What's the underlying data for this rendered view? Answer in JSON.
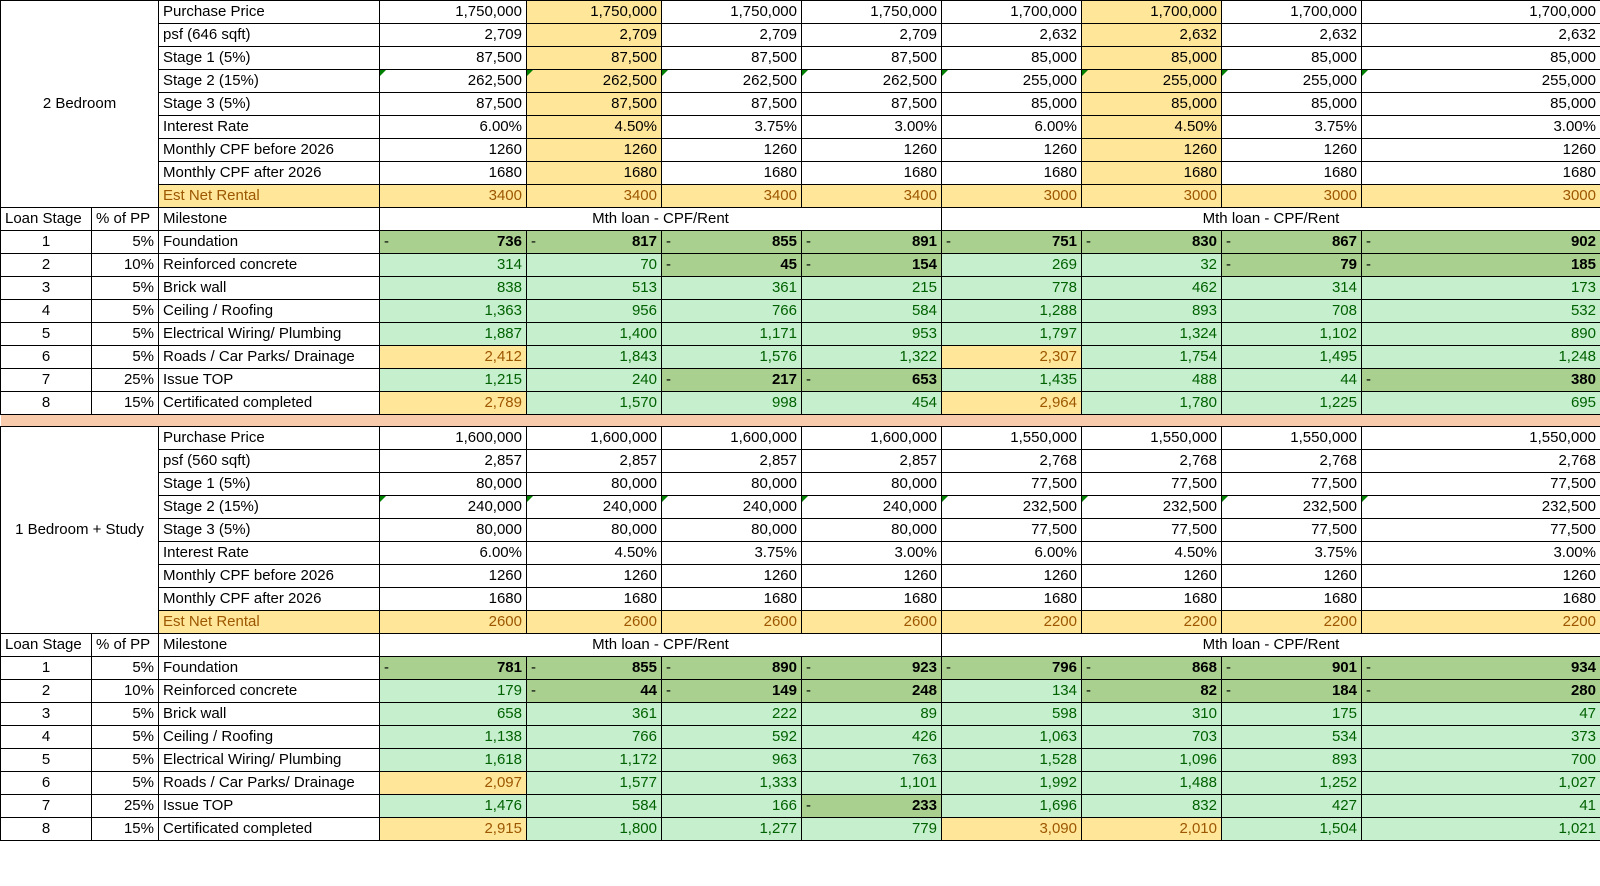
{
  "section_a": {
    "unit_label": "2 Bedroom",
    "info_rows": [
      {
        "label": "Purchase Price",
        "values": [
          "1,750,000",
          "1,750,000",
          "1,750,000",
          "1,750,000",
          "1,700,000",
          "1,700,000",
          "1,700,000",
          "1,700,000"
        ]
      },
      {
        "label": "psf (646 sqft)",
        "values": [
          "2,709",
          "2,709",
          "2,709",
          "2,709",
          "2,632",
          "2,632",
          "2,632",
          "2,632"
        ]
      },
      {
        "label": "Stage 1 (5%)",
        "values": [
          "87,500",
          "87,500",
          "87,500",
          "87,500",
          "85,000",
          "85,000",
          "85,000",
          "85,000"
        ]
      },
      {
        "label": "Stage 2 (15%)",
        "values": [
          "262,500",
          "262,500",
          "262,500",
          "262,500",
          "255,000",
          "255,000",
          "255,000",
          "255,000"
        ]
      },
      {
        "label": "Stage 3 (5%)",
        "values": [
          "87,500",
          "87,500",
          "87,500",
          "87,500",
          "85,000",
          "85,000",
          "85,000",
          "85,000"
        ]
      },
      {
        "label": "Interest Rate",
        "values": [
          "6.00%",
          "4.50%",
          "3.75%",
          "3.00%",
          "6.00%",
          "4.50%",
          "3.75%",
          "3.00%"
        ]
      },
      {
        "label": "Monthly CPF before 2026",
        "values": [
          "1260",
          "1260",
          "1260",
          "1260",
          "1260",
          "1260",
          "1260",
          "1260"
        ]
      },
      {
        "label": "Monthly CPF after 2026",
        "values": [
          "1680",
          "1680",
          "1680",
          "1680",
          "1680",
          "1680",
          "1680",
          "1680"
        ]
      },
      {
        "label": "Est Net Rental",
        "values": [
          "3400",
          "3400",
          "3400",
          "3400",
          "3000",
          "3000",
          "3000",
          "3000"
        ]
      }
    ],
    "header": {
      "col1": "Loan Stage",
      "col2": "% of PP",
      "col3": "Milestone",
      "group1": "Mth loan - CPF/Rent",
      "group2": "Mth loan - CPF/Rent"
    },
    "stages": [
      {
        "stage": "1",
        "pct": "5%",
        "milestone": "Foundation",
        "values": [
          "736",
          "817",
          "855",
          "891",
          "751",
          "830",
          "867",
          "902"
        ]
      },
      {
        "stage": "2",
        "pct": "10%",
        "milestone": "Reinforced concrete",
        "values": [
          "314",
          "70",
          "45",
          "154",
          "269",
          "32",
          "79",
          "185"
        ]
      },
      {
        "stage": "3",
        "pct": "5%",
        "milestone": "Brick wall",
        "values": [
          "838",
          "513",
          "361",
          "215",
          "778",
          "462",
          "314",
          "173"
        ]
      },
      {
        "stage": "4",
        "pct": "5%",
        "milestone": "Ceiling / Roofing",
        "values": [
          "1,363",
          "956",
          "766",
          "584",
          "1,288",
          "893",
          "708",
          "532"
        ]
      },
      {
        "stage": "5",
        "pct": "5%",
        "milestone": "Electrical Wiring/ Plumbing",
        "values": [
          "1,887",
          "1,400",
          "1,171",
          "953",
          "1,797",
          "1,324",
          "1,102",
          "890"
        ]
      },
      {
        "stage": "6",
        "pct": "5%",
        "milestone": "Roads / Car Parks/ Drainage",
        "values": [
          "2,412",
          "1,843",
          "1,576",
          "1,322",
          "2,307",
          "1,754",
          "1,495",
          "1,248"
        ]
      },
      {
        "stage": "7",
        "pct": "25%",
        "milestone": "Issue TOP",
        "values": [
          "1,215",
          "240",
          "217",
          "653",
          "1,435",
          "488",
          "44",
          "380"
        ]
      },
      {
        "stage": "8",
        "pct": "15%",
        "milestone": "Certificated completed",
        "values": [
          "2,789",
          "1,570",
          "998",
          "454",
          "2,964",
          "1,780",
          "1,225",
          "695"
        ]
      }
    ]
  },
  "section_b": {
    "unit_label": "1 Bedroom + Study",
    "info_rows": [
      {
        "label": "Purchase Price",
        "values": [
          "1,600,000",
          "1,600,000",
          "1,600,000",
          "1,600,000",
          "1,550,000",
          "1,550,000",
          "1,550,000",
          "1,550,000"
        ]
      },
      {
        "label": "psf (560 sqft)",
        "values": [
          "2,857",
          "2,857",
          "2,857",
          "2,857",
          "2,768",
          "2,768",
          "2,768",
          "2,768"
        ]
      },
      {
        "label": "Stage 1 (5%)",
        "values": [
          "80,000",
          "80,000",
          "80,000",
          "80,000",
          "77,500",
          "77,500",
          "77,500",
          "77,500"
        ]
      },
      {
        "label": "Stage 2 (15%)",
        "values": [
          "240,000",
          "240,000",
          "240,000",
          "240,000",
          "232,500",
          "232,500",
          "232,500",
          "232,500"
        ]
      },
      {
        "label": "Stage 3 (5%)",
        "values": [
          "80,000",
          "80,000",
          "80,000",
          "80,000",
          "77,500",
          "77,500",
          "77,500",
          "77,500"
        ]
      },
      {
        "label": "Interest Rate",
        "values": [
          "6.00%",
          "4.50%",
          "3.75%",
          "3.00%",
          "6.00%",
          "4.50%",
          "3.75%",
          "3.00%"
        ]
      },
      {
        "label": "Monthly CPF before 2026",
        "values": [
          "1260",
          "1260",
          "1260",
          "1260",
          "1260",
          "1260",
          "1260",
          "1260"
        ]
      },
      {
        "label": "Monthly CPF after 2026",
        "values": [
          "1680",
          "1680",
          "1680",
          "1680",
          "1680",
          "1680",
          "1680",
          "1680"
        ]
      },
      {
        "label": "Est Net Rental",
        "values": [
          "2600",
          "2600",
          "2600",
          "2600",
          "2200",
          "2200",
          "2200",
          "2200"
        ]
      }
    ],
    "header": {
      "col1": "Loan Stage",
      "col2": "% of PP",
      "col3": "Milestone",
      "group1": "Mth loan - CPF/Rent",
      "group2": "Mth loan - CPF/Rent"
    },
    "stages": [
      {
        "stage": "1",
        "pct": "5%",
        "milestone": "Foundation",
        "values": [
          "781",
          "855",
          "890",
          "923",
          "796",
          "868",
          "901",
          "934"
        ]
      },
      {
        "stage": "2",
        "pct": "10%",
        "milestone": "Reinforced concrete",
        "values": [
          "179",
          "44",
          "149",
          "248",
          "134",
          "82",
          "184",
          "280"
        ]
      },
      {
        "stage": "3",
        "pct": "5%",
        "milestone": "Brick wall",
        "values": [
          "658",
          "361",
          "222",
          "89",
          "598",
          "310",
          "175",
          "47"
        ]
      },
      {
        "stage": "4",
        "pct": "5%",
        "milestone": "Ceiling / Roofing",
        "values": [
          "1,138",
          "766",
          "592",
          "426",
          "1,063",
          "703",
          "534",
          "373"
        ]
      },
      {
        "stage": "5",
        "pct": "5%",
        "milestone": "Electrical Wiring/ Plumbing",
        "values": [
          "1,618",
          "1,172",
          "963",
          "763",
          "1,528",
          "1,096",
          "893",
          "700"
        ]
      },
      {
        "stage": "6",
        "pct": "5%",
        "milestone": "Roads / Car Parks/ Drainage",
        "values": [
          "2,097",
          "1,577",
          "1,333",
          "1,101",
          "1,992",
          "1,488",
          "1,252",
          "1,027"
        ]
      },
      {
        "stage": "7",
        "pct": "25%",
        "milestone": "Issue TOP",
        "values": [
          "1,476",
          "584",
          "166",
          "233",
          "1,696",
          "832",
          "427",
          "41"
        ]
      },
      {
        "stage": "8",
        "pct": "15%",
        "milestone": "Certificated completed",
        "values": [
          "2,915",
          "1,800",
          "1,277",
          "779",
          "3,090",
          "2,010",
          "1,504",
          "1,021"
        ]
      }
    ]
  },
  "colors": {
    "yellow_fill": "#ffe699",
    "green_light": "#c6efce",
    "green_dark": "#a9d08e",
    "separator": "#f8cbad"
  }
}
